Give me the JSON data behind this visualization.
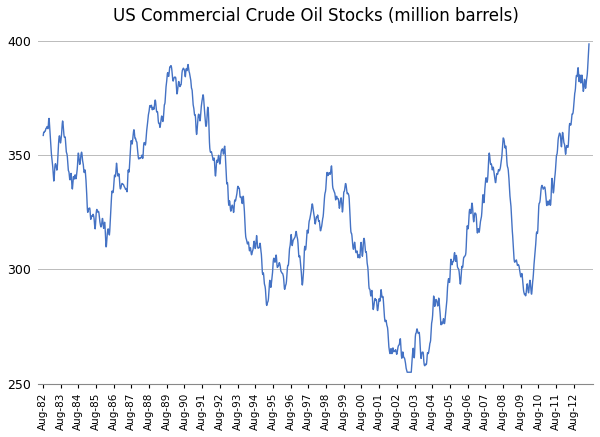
{
  "title": "US Commercial Crude Oil Stocks (million barrels)",
  "line_color": "#4472C4",
  "bg_color": "#FFFFFF",
  "grid_color": "#BBBBBB",
  "ylim": [
    250,
    405
  ],
  "yticks": [
    250,
    300,
    350,
    400
  ],
  "title_fontsize": 12,
  "linewidth": 1.0
}
